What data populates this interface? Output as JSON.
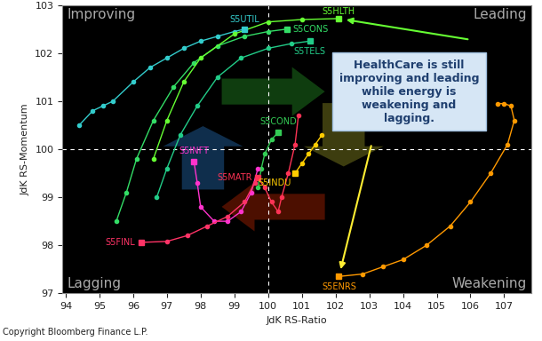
{
  "chart_data": {
    "type": "scatter",
    "x_label": "JdK RS-Ratio",
    "y_label": "JdK RS-Momentum",
    "xlim": [
      93.9,
      107.8
    ],
    "xticks": [
      94,
      95,
      96,
      97,
      98,
      99,
      100,
      101,
      102,
      103,
      104,
      105,
      106,
      107
    ],
    "ylim": [
      97,
      103
    ],
    "yticks": [
      97,
      98,
      99,
      100,
      101,
      102,
      103
    ],
    "grid": false,
    "center": {
      "x": 100,
      "y": 100
    },
    "quadrants": [
      "Improving",
      "Leading",
      "Lagging",
      "Weakening"
    ],
    "annotation": {
      "text": "HealthCare is still\nimproving and leading\nwhile energy is\nweakening and\nlagging.",
      "points_to": [
        "S5HLTH",
        "S5ENRS"
      ]
    },
    "copyright": "Copyright Bloomberg Finance L.P.",
    "series": [
      {
        "name": "S5UTIL",
        "color": "#33cccc",
        "x": [
          94.4,
          94.8,
          95.1,
          95.4,
          96.0,
          96.5,
          97.0,
          97.5,
          98.0,
          98.5,
          99.0,
          99.3
        ],
        "values": [
          100.5,
          100.8,
          100.9,
          101.0,
          101.4,
          101.7,
          101.9,
          102.1,
          102.25,
          102.35,
          102.45,
          102.5
        ]
      },
      {
        "name": "S5CONS",
        "color": "#33dd66",
        "x": [
          95.5,
          95.8,
          96.1,
          96.6,
          97.2,
          97.8,
          98.5,
          99.3,
          100.0,
          100.55
        ],
        "values": [
          98.5,
          99.1,
          99.8,
          100.6,
          101.3,
          101.8,
          102.15,
          102.35,
          102.45,
          102.5
        ]
      },
      {
        "name": "S5TELS",
        "color": "#22cc88",
        "x": [
          96.7,
          97.0,
          97.4,
          97.9,
          98.5,
          99.2,
          100.0,
          100.7,
          101.24
        ],
        "values": [
          99.0,
          99.6,
          100.3,
          100.9,
          101.5,
          101.9,
          102.1,
          102.2,
          102.25
        ]
      },
      {
        "name": "S5HLTH",
        "color": "#66ff33",
        "x": [
          96.6,
          97.0,
          97.5,
          98.0,
          99.0,
          100.0,
          101.0,
          102.1
        ],
        "values": [
          99.8,
          100.6,
          101.4,
          101.9,
          102.4,
          102.65,
          102.7,
          102.72
        ]
      },
      {
        "name": "S5COND",
        "color": "#33cc55",
        "x": [
          99.7,
          99.8,
          99.9,
          100.1,
          100.3
        ],
        "values": [
          99.2,
          99.6,
          99.9,
          100.2,
          100.35
        ]
      },
      {
        "name": "S5INFT",
        "color": "#ff33cc",
        "x": [
          99.7,
          99.5,
          99.2,
          98.8,
          98.4,
          98.0,
          97.9,
          97.8
        ],
        "values": [
          99.6,
          99.1,
          98.7,
          98.5,
          98.5,
          98.8,
          99.3,
          99.75
        ]
      },
      {
        "name": "S5MATR",
        "color": "#ff3355",
        "x": [
          100.9,
          100.8,
          100.6,
          100.4,
          100.3,
          100.1,
          99.9,
          99.7
        ],
        "values": [
          100.7,
          100.1,
          99.5,
          99.0,
          98.7,
          98.9,
          99.2,
          99.4
        ]
      },
      {
        "name": "S5INDU",
        "color": "#ffcc00",
        "x": [
          101.6,
          101.4,
          101.2,
          101.0,
          100.8
        ],
        "values": [
          100.3,
          100.1,
          99.9,
          99.7,
          99.5
        ]
      },
      {
        "name": "S5FINL",
        "color": "#ff3366",
        "x": [
          99.6,
          99.3,
          98.8,
          98.2,
          97.6,
          97.0,
          96.25
        ],
        "values": [
          99.3,
          98.9,
          98.6,
          98.4,
          98.2,
          98.08,
          98.06
        ]
      },
      {
        "name": "S5ENRS",
        "color": "#ff9900",
        "x": [
          106.8,
          107.0,
          107.2,
          107.3,
          107.1,
          106.6,
          106.0,
          105.4,
          104.7,
          104.0,
          103.4,
          102.8,
          102.1
        ],
        "values": [
          100.95,
          100.95,
          100.9,
          100.6,
          100.1,
          99.5,
          98.9,
          98.4,
          98.0,
          97.7,
          97.55,
          97.4,
          97.35
        ]
      }
    ]
  }
}
